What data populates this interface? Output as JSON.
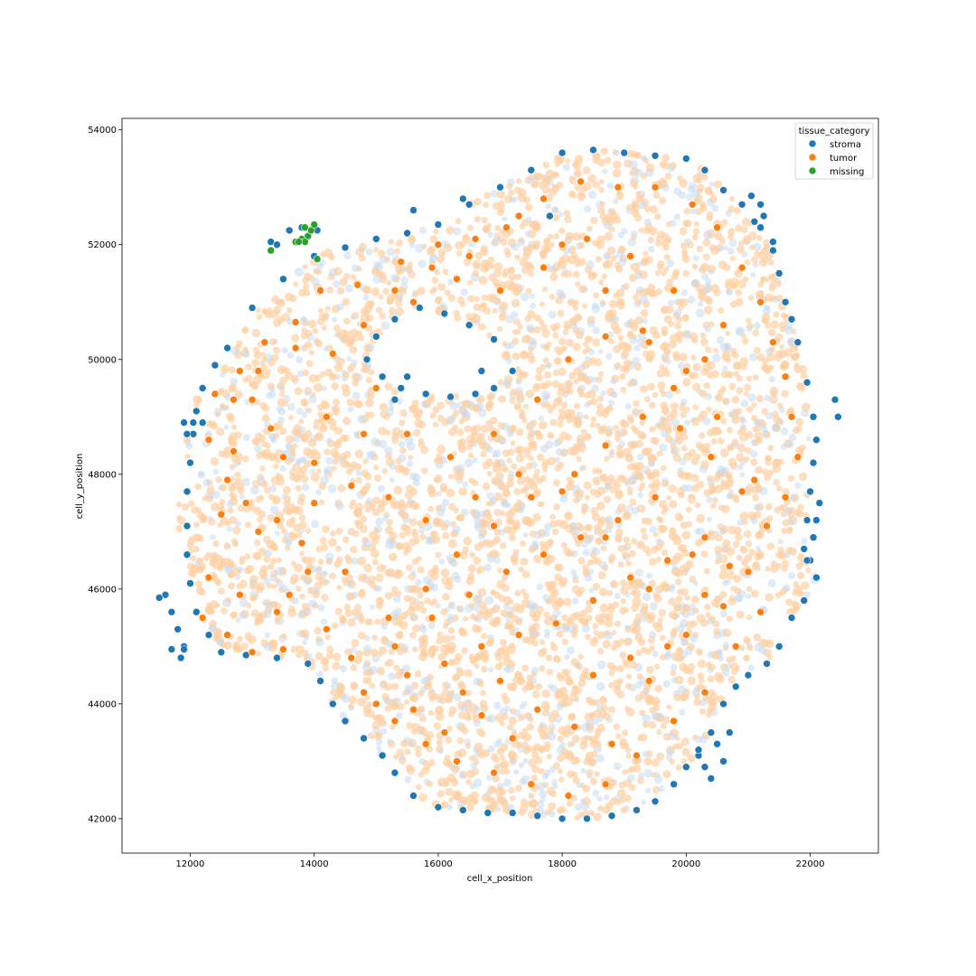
{
  "chart_data": {
    "type": "scatter",
    "xlabel": "cell_x_position",
    "ylabel": "cell_y_position",
    "xlim": [
      10900,
      23100
    ],
    "ylim": [
      41400,
      54200
    ],
    "xticks": [
      12000,
      14000,
      16000,
      18000,
      20000,
      22000
    ],
    "yticks": [
      42000,
      44000,
      46000,
      48000,
      50000,
      52000,
      54000
    ],
    "grid": false,
    "legend": {
      "title": "tissue_category",
      "placement": "top-right",
      "entries": [
        {
          "name": "stroma",
          "color": "#1f77b4"
        },
        {
          "name": "tumor",
          "color": "#ff7f0e"
        },
        {
          "name": "missing",
          "color": "#2ca02c"
        }
      ]
    },
    "series": [
      {
        "name": "stroma",
        "color": "#1f77b4",
        "points": [
          [
            12600,
            50200
          ],
          [
            13000,
            50900
          ],
          [
            13500,
            51400
          ],
          [
            14000,
            51800
          ],
          [
            14500,
            51950
          ],
          [
            15000,
            52100
          ],
          [
            15500,
            52200
          ],
          [
            16000,
            52350
          ],
          [
            16500,
            52700
          ],
          [
            17000,
            53000
          ],
          [
            17500,
            53300
          ],
          [
            18000,
            53600
          ],
          [
            18500,
            53650
          ],
          [
            19000,
            53600
          ],
          [
            19500,
            53550
          ],
          [
            20000,
            53500
          ],
          [
            20300,
            53300
          ],
          [
            20600,
            52950
          ],
          [
            20900,
            52700
          ],
          [
            21200,
            52300
          ],
          [
            21400,
            51900
          ],
          [
            21500,
            51500
          ],
          [
            21600,
            51000
          ],
          [
            21700,
            50700
          ],
          [
            21800,
            50300
          ],
          [
            21950,
            49600
          ],
          [
            22050,
            49000
          ],
          [
            22100,
            48600
          ],
          [
            22050,
            48200
          ],
          [
            22000,
            47700
          ],
          [
            21950,
            47200
          ],
          [
            21900,
            46700
          ],
          [
            22000,
            46500
          ],
          [
            22100,
            46200
          ],
          [
            21900,
            45800
          ],
          [
            21700,
            45500
          ],
          [
            21500,
            45000
          ],
          [
            21300,
            44700
          ],
          [
            21000,
            44500
          ],
          [
            20800,
            44300
          ],
          [
            20600,
            44000
          ],
          [
            20400,
            43500
          ],
          [
            20200,
            43100
          ],
          [
            20000,
            42900
          ],
          [
            19800,
            42600
          ],
          [
            19500,
            42300
          ],
          [
            19200,
            42150
          ],
          [
            18800,
            42050
          ],
          [
            18400,
            42000
          ],
          [
            18000,
            42000
          ],
          [
            17600,
            42050
          ],
          [
            17200,
            42100
          ],
          [
            16800,
            42100
          ],
          [
            16400,
            42150
          ],
          [
            16000,
            42200
          ],
          [
            15600,
            42400
          ],
          [
            15300,
            42800
          ],
          [
            15100,
            43100
          ],
          [
            14800,
            43400
          ],
          [
            14500,
            43700
          ],
          [
            14300,
            44000
          ],
          [
            14100,
            44400
          ],
          [
            13900,
            44700
          ],
          [
            13400,
            44800
          ],
          [
            12900,
            44850
          ],
          [
            12500,
            44900
          ],
          [
            12300,
            45200
          ],
          [
            12100,
            45600
          ],
          [
            12000,
            46100
          ],
          [
            11950,
            46600
          ],
          [
            11950,
            47100
          ],
          [
            11950,
            47700
          ],
          [
            12000,
            48200
          ],
          [
            12050,
            48700
          ],
          [
            12100,
            49100
          ],
          [
            12200,
            49500
          ],
          [
            12400,
            49900
          ],
          [
            11900,
            48900
          ],
          [
            12050,
            48900
          ],
          [
            12200,
            48900
          ],
          [
            11950,
            48700
          ],
          [
            11600,
            45900
          ],
          [
            11500,
            45850
          ],
          [
            11700,
            45600
          ],
          [
            11800,
            45300
          ],
          [
            11900,
            45000
          ],
          [
            11700,
            44950
          ],
          [
            11850,
            44800
          ],
          [
            11900,
            44950
          ],
          [
            14850,
            50000
          ],
          [
            15000,
            50400
          ],
          [
            15300,
            50700
          ],
          [
            15700,
            50900
          ],
          [
            16100,
            50800
          ],
          [
            16500,
            50600
          ],
          [
            16900,
            50350
          ],
          [
            17200,
            49800
          ],
          [
            16900,
            49500
          ],
          [
            16600,
            49400
          ],
          [
            16200,
            49350
          ],
          [
            15800,
            49400
          ],
          [
            15400,
            49500
          ],
          [
            15100,
            49700
          ],
          [
            15300,
            49300
          ],
          [
            15500,
            49700
          ],
          [
            16700,
            49800
          ],
          [
            22400,
            49300
          ],
          [
            22450,
            49000
          ],
          [
            22150,
            47500
          ],
          [
            22100,
            47200
          ],
          [
            22050,
            46900
          ],
          [
            21950,
            46500
          ],
          [
            20700,
            43500
          ],
          [
            20500,
            43300
          ],
          [
            20600,
            43000
          ],
          [
            20300,
            42900
          ],
          [
            20200,
            43200
          ],
          [
            20400,
            42700
          ],
          [
            13300,
            52050
          ],
          [
            13400,
            52000
          ],
          [
            13600,
            52250
          ],
          [
            13800,
            52300
          ],
          [
            14050,
            52250
          ],
          [
            15600,
            52600
          ],
          [
            16400,
            52800
          ],
          [
            17800,
            52500
          ],
          [
            21050,
            52850
          ],
          [
            21200,
            52700
          ],
          [
            21250,
            52500
          ],
          [
            21100,
            52400
          ],
          [
            21400,
            52050
          ]
        ]
      },
      {
        "name": "missing",
        "color": "#2ca02c",
        "points": [
          [
            13300,
            51900
          ],
          [
            13700,
            52050
          ],
          [
            13800,
            52100
          ],
          [
            13850,
            52300
          ],
          [
            13900,
            52150
          ],
          [
            13950,
            52250
          ],
          [
            14000,
            52350
          ],
          [
            13850,
            52050
          ],
          [
            13750,
            52050
          ],
          [
            14050,
            51750
          ]
        ]
      },
      {
        "name": "tumor",
        "color": "#ff7f0e",
        "points": [
          [
            12400,
            49400
          ],
          [
            12800,
            49800
          ],
          [
            13200,
            50300
          ],
          [
            13700,
            50650
          ],
          [
            14300,
            50100
          ],
          [
            12700,
            48400
          ],
          [
            13300,
            48800
          ],
          [
            14000,
            48200
          ],
          [
            14600,
            47800
          ],
          [
            12500,
            47300
          ],
          [
            13100,
            47000
          ],
          [
            13800,
            46800
          ],
          [
            12800,
            45900
          ],
          [
            13400,
            45600
          ],
          [
            14200,
            45300
          ],
          [
            12300,
            46200
          ],
          [
            13000,
            44900
          ],
          [
            13500,
            44950
          ],
          [
            14800,
            50600
          ],
          [
            15300,
            51200
          ],
          [
            15900,
            51600
          ],
          [
            16500,
            51800
          ],
          [
            17100,
            52300
          ],
          [
            17700,
            52800
          ],
          [
            18300,
            53100
          ],
          [
            18900,
            53000
          ],
          [
            19500,
            53000
          ],
          [
            20100,
            52700
          ],
          [
            20500,
            52300
          ],
          [
            20900,
            51600
          ],
          [
            21200,
            51000
          ],
          [
            21400,
            50300
          ],
          [
            21600,
            49700
          ],
          [
            21700,
            49000
          ],
          [
            21800,
            48300
          ],
          [
            21600,
            47600
          ],
          [
            21300,
            47100
          ],
          [
            21000,
            46300
          ],
          [
            21200,
            45600
          ],
          [
            20800,
            45000
          ],
          [
            20300,
            44200
          ],
          [
            19800,
            43700
          ],
          [
            19200,
            43100
          ],
          [
            18700,
            42600
          ],
          [
            18100,
            42400
          ],
          [
            17500,
            42600
          ],
          [
            16900,
            42800
          ],
          [
            16300,
            43000
          ],
          [
            15800,
            43300
          ],
          [
            15300,
            43700
          ],
          [
            14800,
            44200
          ],
          [
            14600,
            44800
          ],
          [
            15200,
            45500
          ],
          [
            15800,
            46000
          ],
          [
            16300,
            46600
          ],
          [
            16900,
            47100
          ],
          [
            17500,
            47600
          ],
          [
            18200,
            48000
          ],
          [
            18700,
            48500
          ],
          [
            19300,
            49000
          ],
          [
            19800,
            49500
          ],
          [
            20300,
            50000
          ],
          [
            20600,
            50600
          ],
          [
            19800,
            51200
          ],
          [
            19100,
            51800
          ],
          [
            18400,
            52100
          ],
          [
            17700,
            51600
          ],
          [
            17000,
            51200
          ],
          [
            16300,
            51400
          ],
          [
            15600,
            51000
          ],
          [
            15000,
            49500
          ],
          [
            15500,
            48700
          ],
          [
            16200,
            48300
          ],
          [
            16900,
            48700
          ],
          [
            17600,
            49300
          ],
          [
            18100,
            50000
          ],
          [
            18700,
            50400
          ],
          [
            19300,
            50500
          ],
          [
            19900,
            48800
          ],
          [
            20400,
            48300
          ],
          [
            20900,
            47700
          ],
          [
            20300,
            46900
          ],
          [
            19700,
            46500
          ],
          [
            19100,
            46200
          ],
          [
            18500,
            45800
          ],
          [
            17900,
            45400
          ],
          [
            17300,
            45200
          ],
          [
            16700,
            45000
          ],
          [
            16100,
            44700
          ],
          [
            15500,
            44500
          ],
          [
            15000,
            44000
          ],
          [
            16400,
            44200
          ],
          [
            17000,
            44400
          ],
          [
            17600,
            43900
          ],
          [
            18200,
            43600
          ],
          [
            18800,
            43300
          ],
          [
            19400,
            44400
          ],
          [
            20000,
            45200
          ],
          [
            20600,
            45700
          ],
          [
            19500,
            47600
          ],
          [
            18900,
            47200
          ],
          [
            18300,
            46900
          ],
          [
            17700,
            46600
          ],
          [
            17100,
            46300
          ],
          [
            16500,
            45900
          ],
          [
            15900,
            45500
          ],
          [
            15300,
            45000
          ],
          [
            14500,
            46300
          ],
          [
            14000,
            47500
          ],
          [
            13500,
            48300
          ],
          [
            13000,
            49300
          ],
          [
            14200,
            49000
          ],
          [
            14800,
            48700
          ],
          [
            15200,
            47600
          ],
          [
            15800,
            47200
          ],
          [
            16600,
            47600
          ],
          [
            17300,
            48000
          ],
          [
            18000,
            47700
          ],
          [
            18700,
            46900
          ],
          [
            19400,
            46000
          ],
          [
            20100,
            46600
          ],
          [
            20700,
            46400
          ],
          [
            21100,
            47900
          ],
          [
            20500,
            49000
          ],
          [
            20000,
            49800
          ],
          [
            19400,
            50300
          ],
          [
            18700,
            51200
          ],
          [
            18000,
            52000
          ],
          [
            17300,
            52500
          ],
          [
            16600,
            52100
          ],
          [
            16000,
            52000
          ],
          [
            15400,
            51700
          ],
          [
            14700,
            51300
          ],
          [
            14100,
            51200
          ],
          [
            13700,
            50200
          ],
          [
            13100,
            49800
          ],
          [
            12700,
            49300
          ],
          [
            12300,
            48600
          ],
          [
            12600,
            47900
          ],
          [
            12900,
            47500
          ],
          [
            13400,
            47200
          ],
          [
            13900,
            46300
          ],
          [
            13600,
            45900
          ],
          [
            12600,
            45200
          ],
          [
            12200,
            45500
          ],
          [
            18500,
            44500
          ],
          [
            19100,
            44800
          ],
          [
            19700,
            45000
          ],
          [
            20300,
            45900
          ],
          [
            17200,
            43400
          ],
          [
            16700,
            43800
          ],
          [
            16100,
            43500
          ],
          [
            15600,
            43900
          ]
        ]
      }
    ]
  }
}
